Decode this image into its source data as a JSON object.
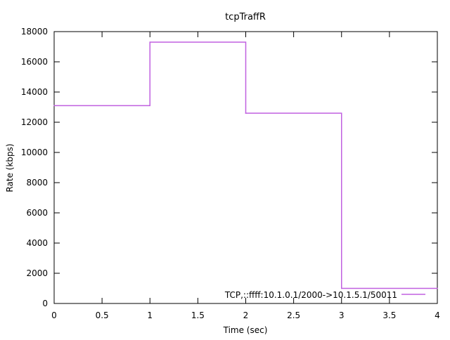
{
  "chart_data": {
    "type": "line",
    "step": true,
    "title": "tcpTraffR",
    "xlabel": "Time (sec)",
    "ylabel": "Rate (kbps)",
    "xlim": [
      0,
      4
    ],
    "ylim": [
      0,
      18000
    ],
    "x_ticks": [
      "0",
      "0.5",
      "1",
      "1.5",
      "2",
      "2.5",
      "3",
      "3.5",
      "4"
    ],
    "y_ticks": [
      "0",
      "2000",
      "4000",
      "6000",
      "8000",
      "10000",
      "12000",
      "14000",
      "16000",
      "18000"
    ],
    "grid": false,
    "legend": {
      "placement": "bottom-right"
    },
    "series": [
      {
        "name": "TCP,::ffff:10.1.0.1/2000->10.1.5.1/50011",
        "color": "#c060e0",
        "x": [
          0,
          1,
          2,
          3,
          4
        ],
        "values": [
          13100,
          17300,
          12600,
          1000,
          1000
        ]
      }
    ]
  }
}
